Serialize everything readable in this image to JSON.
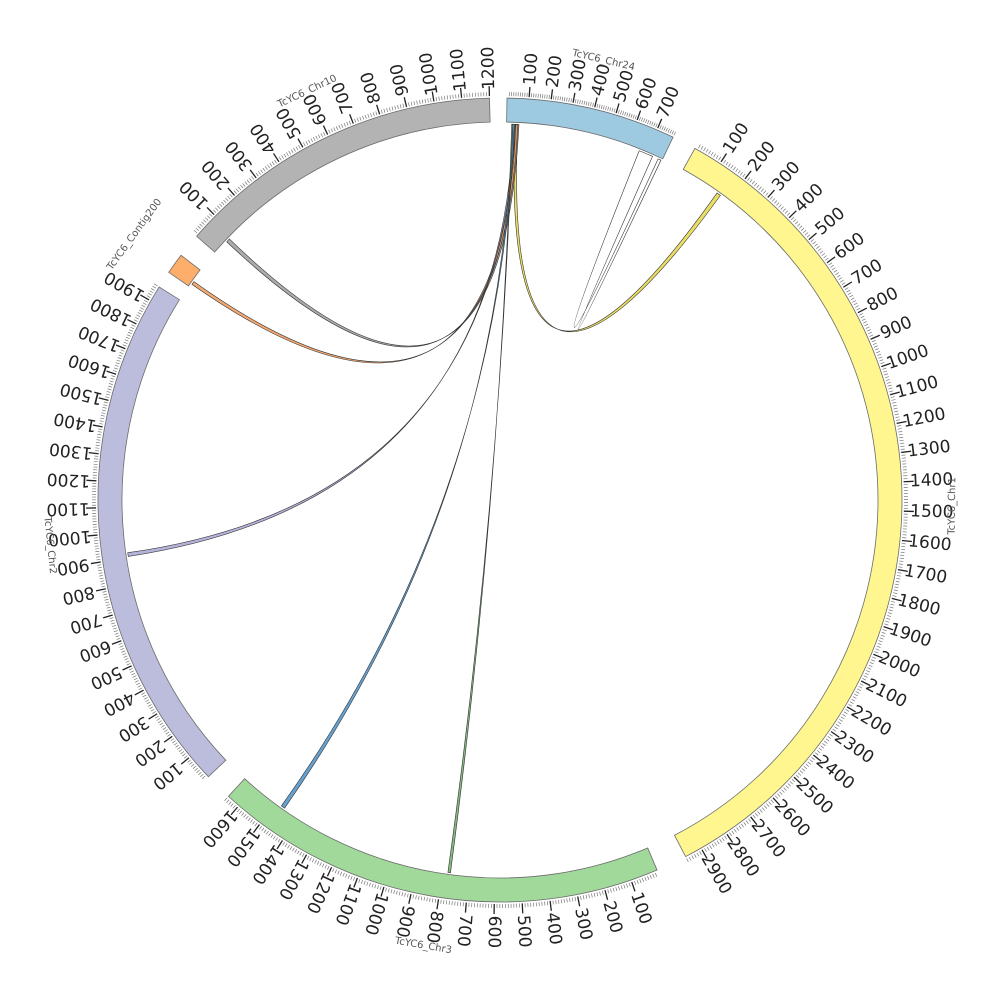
{
  "chromosomes": [
    {
      "id": "chr24",
      "name": "TcYC6_Chr24",
      "color": "#9ECAE1",
      "length": 780,
      "start_deg": 1.0,
      "end_deg": 25.5,
      "tick_step": 100
    },
    {
      "id": "chr1",
      "name": "TcYC6_Chr1",
      "color": "#FFF68F",
      "length": 2960,
      "start_deg": 29.0,
      "end_deg": 152.5,
      "tick_step": 100
    },
    {
      "id": "chr3",
      "name": "TcYC6_Chr3",
      "color": "#A1D99B",
      "length": 1650,
      "start_deg": 157.0,
      "end_deg": 222.5,
      "tick_step": 100
    },
    {
      "id": "chr2",
      "name": "TcYC6_Chr2",
      "color": "#BCBDDC",
      "length": 1960,
      "start_deg": 226.5,
      "end_deg": 302.0,
      "tick_step": 100
    },
    {
      "id": "contig200",
      "name": "TcYC6_Contig200",
      "color": "#FDAE6B",
      "length": 60,
      "start_deg": 304.5,
      "end_deg": 307.5,
      "tick_step": 0
    },
    {
      "id": "chr10",
      "name": "TcYC6_Chr10",
      "color": "#B3B3B3",
      "length": 1200,
      "start_deg": 311.0,
      "end_deg": 358.5,
      "tick_step": 100
    }
  ],
  "links": [
    {
      "from": "chr24",
      "from_start": 40,
      "from_end": 55,
      "to": "chr1",
      "to_start": 150,
      "to_end": 165,
      "color": "#E8D84A"
    },
    {
      "from": "chr24",
      "from_start": 660,
      "from_end": 730,
      "to": "chr24",
      "to_start": 760,
      "to_end": 775,
      "color": "#FFFFFF"
    },
    {
      "from": "chr24",
      "from_start": 50,
      "from_end": 60,
      "to": "chr10",
      "to_start": 60,
      "to_end": 75,
      "color": "#9E9E9E"
    },
    {
      "from": "chr24",
      "from_start": 45,
      "from_end": 55,
      "to": "contig200",
      "to_start": 10,
      "to_end": 20,
      "color": "#F39A5B"
    },
    {
      "from": "chr24",
      "from_start": 35,
      "from_end": 42,
      "to": "chr2",
      "to_start": 905,
      "to_end": 920,
      "color": "#A9A6D3"
    },
    {
      "from": "chr24",
      "from_start": 30,
      "from_end": 38,
      "to": "chr3",
      "to_start": 1460,
      "to_end": 1475,
      "color": "#4A90C8"
    },
    {
      "from": "chr24",
      "from_start": 25,
      "from_end": 30,
      "to": "chr3",
      "to_start": 770,
      "to_end": 780,
      "color": "#6FAF6A"
    }
  ]
}
